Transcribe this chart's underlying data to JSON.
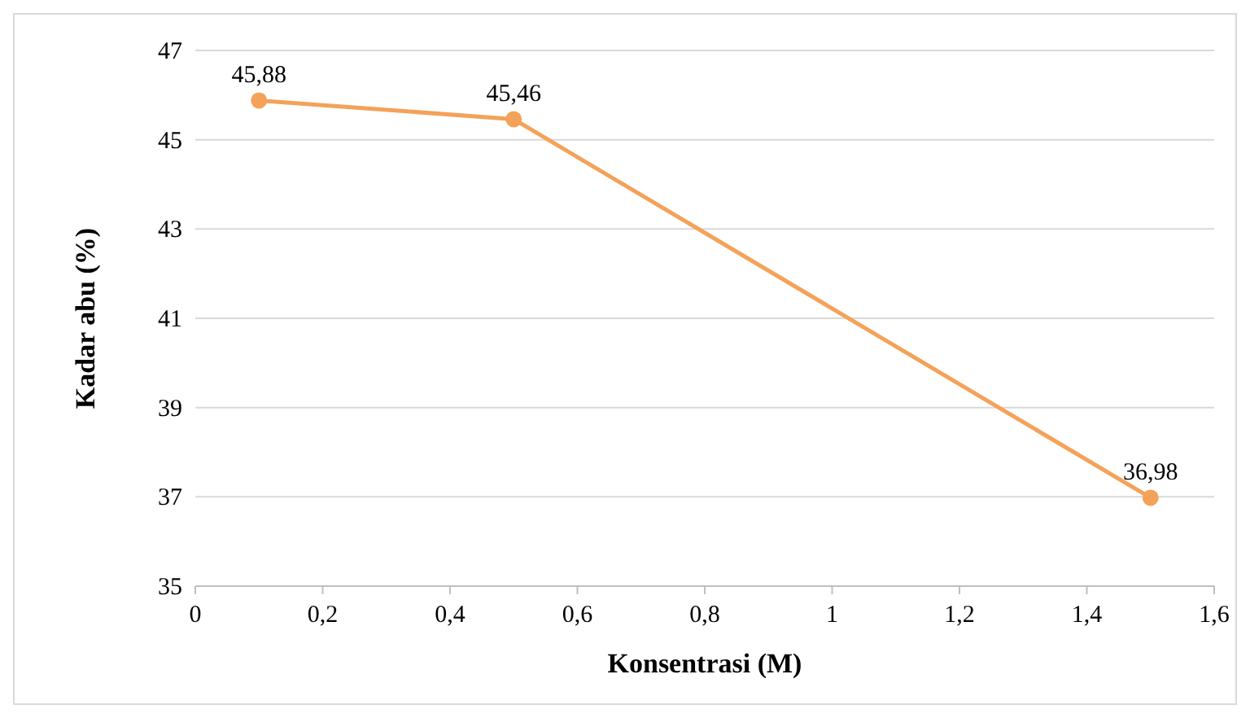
{
  "chart_data": {
    "type": "line",
    "xlabel": "Konsentrasi (M)",
    "ylabel": "Kadar abu (%)",
    "x": [
      0.1,
      0.5,
      1.5
    ],
    "series": [
      {
        "color": "#f4a259",
        "values": [
          45.88,
          45.46,
          36.98
        ],
        "value_labels": [
          "45,88",
          "45,46",
          "36,98"
        ]
      }
    ],
    "xlim": [
      0,
      1.6
    ],
    "xticks": [
      0,
      {
        "value": 0.2,
        "label": "0,2"
      },
      {
        "value": 0.4,
        "label": "0,4"
      },
      {
        "value": 0.6,
        "label": "0,6"
      },
      {
        "value": 0.8,
        "label": "0,8"
      },
      1,
      {
        "value": 1.2,
        "label": "1,2"
      },
      {
        "value": 1.4,
        "label": "1,4"
      },
      {
        "value": 1.6,
        "label": "1,6"
      }
    ],
    "ylim": [
      35,
      47
    ],
    "yticks": [
      35,
      37,
      39,
      41,
      43,
      45,
      47
    ],
    "grid": "y",
    "marker": "circle",
    "line_style": "solid"
  }
}
